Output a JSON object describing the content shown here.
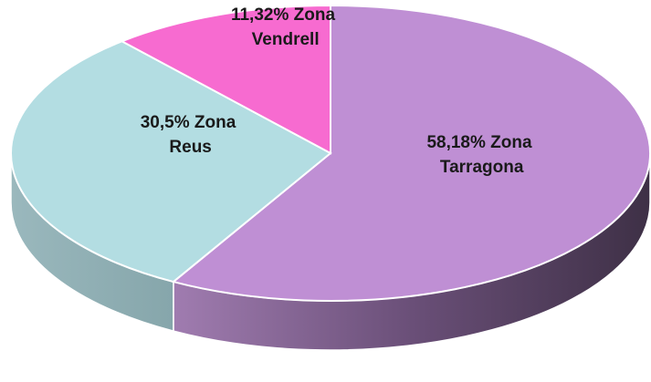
{
  "chart_data": {
    "type": "pie3d",
    "values": [
      58.18,
      30.5,
      11.32
    ],
    "value_labels": [
      "58,18% Zona Tarragona",
      "30,5% Zona Reus",
      "11,32% Zona Vendrell"
    ],
    "colors": [
      "#bf8fd4",
      "#b3dde2",
      "#f76bd0"
    ],
    "start_angle": 0,
    "direction": "clockwise"
  }
}
